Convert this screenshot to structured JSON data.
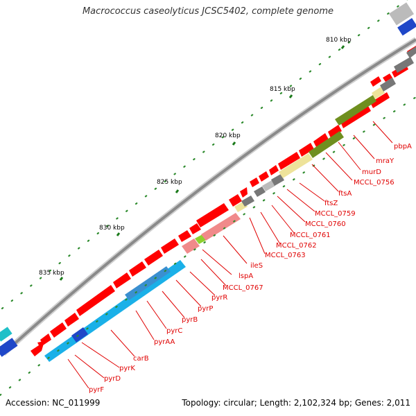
{
  "title": "Macrococcus caseolyticus JCSC5402, complete genome",
  "accession": "Accession: NC_011999",
  "summary": "Topology: circular; Length: 2,102,324 bp; Genes: 2,011",
  "ticks": [
    "810 kbp",
    "815 kbp",
    "820 kbp",
    "825 kbp",
    "830 kbp",
    "835 kbp"
  ],
  "genes": [
    "pbpA",
    "mraY",
    "murD",
    "MCCL_0756",
    "ftsA",
    "ftsZ",
    "MCCL_0759",
    "MCCL_0760",
    "MCCL_0761",
    "MCCL_0762",
    "MCCL_0763",
    "ileS",
    "lspA",
    "MCCL_0767",
    "pyrR",
    "pyrP",
    "pyrB",
    "pyrC",
    "pyrAA",
    "carB",
    "pyrK",
    "pyrD",
    "pyrF"
  ],
  "colors": {
    "backbone": "#8a8a8a",
    "forward_gene": "#ff0000",
    "label": "#e00000",
    "tick": "#1a7a1a",
    "pyrimidine": "#1ab0e8",
    "cell_division": "#6f8f1f",
    "pale": "#eee39a",
    "grey": "#777777",
    "isoleucine": "#f08a8a",
    "lspA": "#8fd02f"
  }
}
